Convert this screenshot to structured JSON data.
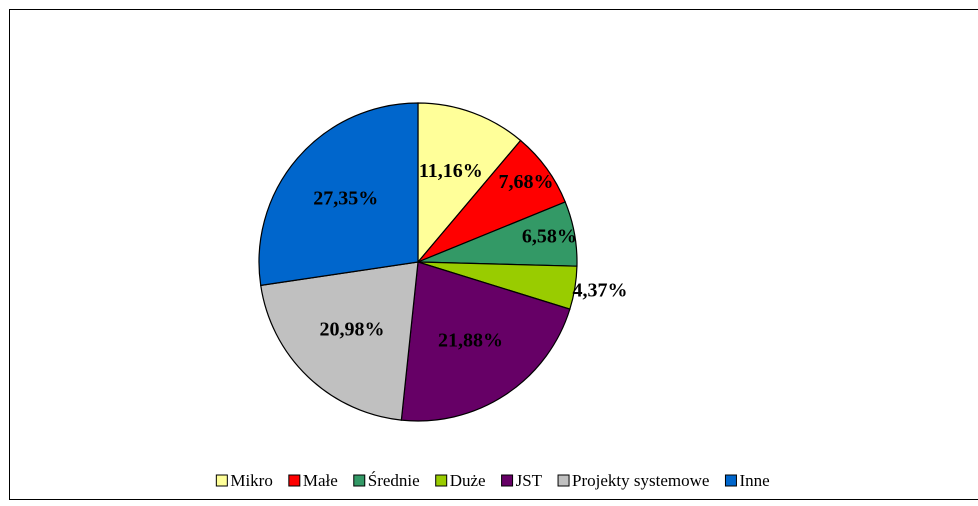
{
  "chart_data": {
    "type": "pie",
    "categories": [
      "Mikro",
      "Małe",
      "Średnie",
      "Duże",
      "JST",
      "Projekty systemowe",
      "Inne"
    ],
    "values": [
      11.16,
      7.68,
      6.58,
      4.37,
      21.88,
      20.98,
      27.35
    ],
    "value_labels": [
      "11,16%",
      "7,68%",
      "6,58%",
      "4,37%",
      "21,88%",
      "20,98%",
      "27,35%"
    ],
    "colors": [
      "#ffff99",
      "#ff0000",
      "#339966",
      "#99cc00",
      "#660066",
      "#c0c0c0",
      "#0066cc"
    ],
    "legend": "bottom"
  }
}
